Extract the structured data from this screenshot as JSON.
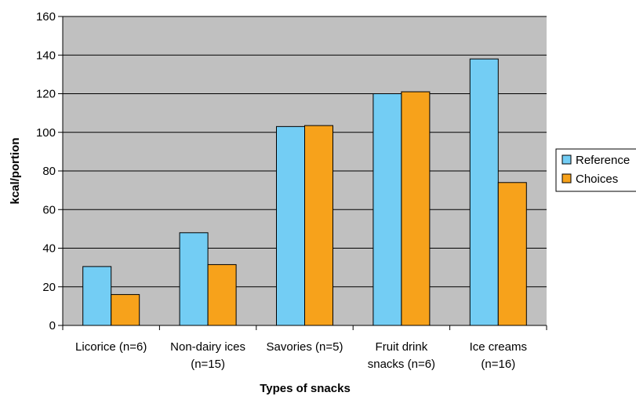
{
  "chart_data": {
    "type": "bar",
    "categories": [
      [
        "Licorice (n=6)",
        ""
      ],
      [
        "Non-dairy ices",
        "(n=15)"
      ],
      [
        "Savories (n=5)",
        ""
      ],
      [
        "Fruit drink",
        "snacks (n=6)"
      ],
      [
        "Ice creams",
        "(n=16)"
      ]
    ],
    "series": [
      {
        "name": "Reference",
        "values": [
          30.5,
          48,
          103,
          120,
          138
        ],
        "color": "#73cdf4"
      },
      {
        "name": "Choices",
        "values": [
          16,
          31.5,
          103.5,
          121,
          74
        ],
        "color": "#f7a21b"
      }
    ],
    "title": "",
    "xlabel": "Types of snacks",
    "ylabel": "kcal/portion",
    "ylim": [
      0,
      160
    ],
    "yticks": [
      0,
      20,
      40,
      60,
      80,
      100,
      120,
      140,
      160
    ],
    "grid": true,
    "plot_background": "#c0c0c0",
    "legend_position": "right"
  }
}
